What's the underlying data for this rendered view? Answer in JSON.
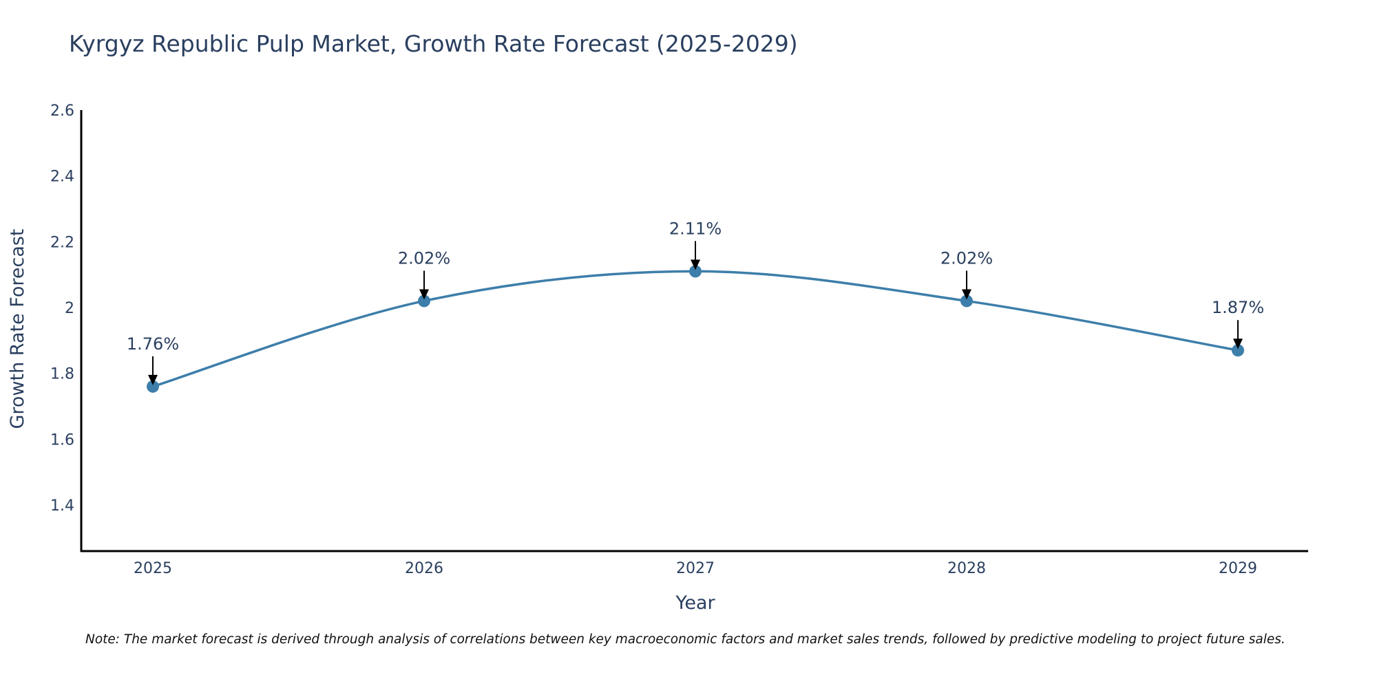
{
  "chart_data": {
    "type": "line",
    "title": "Kyrgyz Republic Pulp Market, Growth Rate Forecast (2025-2029)",
    "xlabel": "Year",
    "ylabel": "Growth Rate Forecast",
    "categories": [
      "2025",
      "2026",
      "2027",
      "2028",
      "2029"
    ],
    "values": [
      1.76,
      2.02,
      2.11,
      2.02,
      1.87
    ],
    "data_labels": [
      "1.76%",
      "2.02%",
      "2.11%",
      "2.02%",
      "1.87%"
    ],
    "yticks": [
      "1.4",
      "1.6",
      "1.8",
      "2",
      "2.2",
      "2.4",
      "2.6"
    ],
    "ylim": [
      1.26,
      2.6
    ],
    "line_color": "#3d7eaa",
    "marker_color": "#3d7eaa",
    "line_shape": "spline",
    "grid": false,
    "note": "Note: The market forecast is derived through analysis of correlations between key macroeconomic factors and market sales trends, followed by predictive modeling to project future sales."
  }
}
